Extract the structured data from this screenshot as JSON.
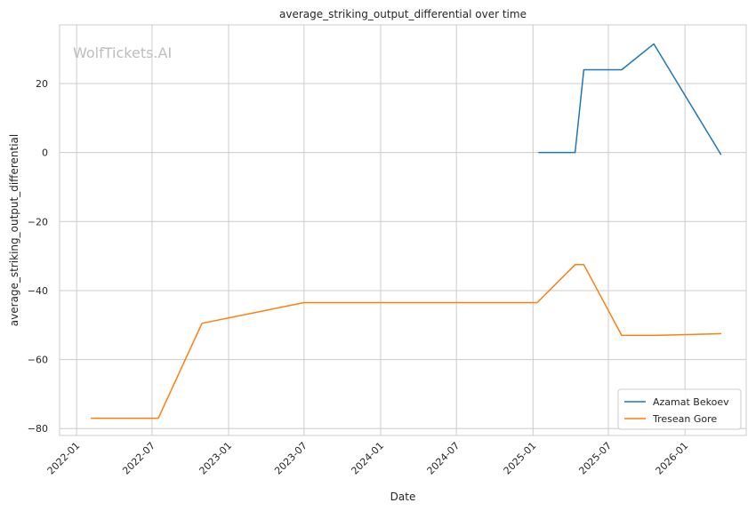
{
  "chart_data": {
    "type": "line",
    "title": "average_striking_output_differential over time",
    "xlabel": "Date",
    "ylabel": "average_striking_output_differential",
    "watermark": "WolfTickets.AI",
    "xlim": [
      "2021-11-21",
      "2026-05-28"
    ],
    "ylim": [
      -82,
      37
    ],
    "x_ticks": [
      "2022-01",
      "2022-07",
      "2023-01",
      "2023-07",
      "2024-01",
      "2024-07",
      "2025-01",
      "2025-07",
      "2026-01"
    ],
    "y_ticks": [
      20,
      0,
      -20,
      -40,
      -60,
      -80
    ],
    "y_tick_labels": [
      "20",
      "0",
      "−20",
      "−40",
      "−60",
      "−80"
    ],
    "grid": true,
    "legend_position": "lower-right",
    "series": [
      {
        "name": "Azamat Bekoev",
        "color": "#1f77b4",
        "points": [
          {
            "x": "2025-01-15",
            "y": 0
          },
          {
            "x": "2025-04-12",
            "y": 0
          },
          {
            "x": "2025-05-03",
            "y": 24
          },
          {
            "x": "2025-08-02",
            "y": 24
          },
          {
            "x": "2025-10-18",
            "y": 31.5
          },
          {
            "x": "2026-03-28",
            "y": -0.5
          }
        ]
      },
      {
        "name": "Tresean Gore",
        "color": "#ff7f0e",
        "points": [
          {
            "x": "2022-02-05",
            "y": -77
          },
          {
            "x": "2022-07-16",
            "y": -77
          },
          {
            "x": "2022-10-29",
            "y": -49.5
          },
          {
            "x": "2023-07-01",
            "y": -43.5
          },
          {
            "x": "2025-01-11",
            "y": -43.5
          },
          {
            "x": "2025-04-12",
            "y": -32.5
          },
          {
            "x": "2025-05-03",
            "y": -32.5
          },
          {
            "x": "2025-08-02",
            "y": -53
          },
          {
            "x": "2025-10-18",
            "y": -53
          },
          {
            "x": "2026-03-28",
            "y": -52.5
          }
        ]
      }
    ]
  }
}
